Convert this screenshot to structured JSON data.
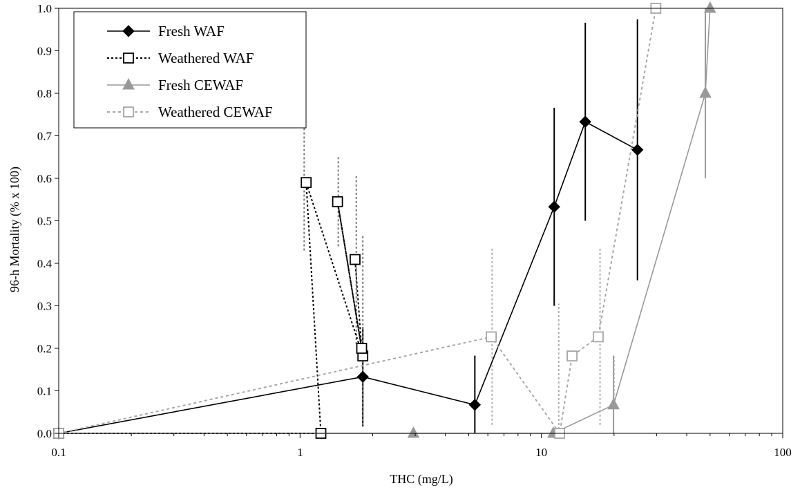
{
  "chart_data": {
    "type": "line",
    "title": "",
    "xlabel": "THC (mg/L)",
    "ylabel": "96-h Mortality (% x 100)",
    "x_scale": "log",
    "xlim": [
      0.1,
      100
    ],
    "ylim": [
      0.0,
      1.0
    ],
    "x_ticks": [
      "0.1",
      "1",
      "10",
      "100"
    ],
    "y_ticks": [
      "0.0",
      "0.1",
      "0.2",
      "0.3",
      "0.4",
      "0.5",
      "0.6",
      "0.7",
      "0.8",
      "0.9",
      "1.0"
    ],
    "grid": false,
    "legend_position": "top-left",
    "series": [
      {
        "name": "Fresh WAF",
        "color": "#000000",
        "marker": "diamond-filled",
        "line": "solid",
        "points": [
          {
            "x": 0.1,
            "y": 0.0
          },
          {
            "x": 1.82,
            "y": 0.133,
            "err_low": 0.016,
            "err_high": 0.25
          },
          {
            "x": 5.3,
            "y": 0.067,
            "err_low": -0.05,
            "err_high": 0.183
          },
          {
            "x": 11.3,
            "y": 0.533,
            "err_low": 0.3,
            "err_high": 0.766
          },
          {
            "x": 15.2,
            "y": 0.733,
            "err_low": 0.5,
            "err_high": 0.966
          },
          {
            "x": 25.0,
            "y": 0.667,
            "err_low": 0.36,
            "err_high": 0.974
          }
        ]
      },
      {
        "name": "Weathered WAF",
        "color": "#000000",
        "marker": "square-open",
        "line": "dotted",
        "points": [
          {
            "x": 0.1,
            "y": 0.0
          },
          {
            "x": 1.22,
            "y": 0.0
          },
          {
            "x": 1.06,
            "y": 0.59
          },
          {
            "x": 1.82,
            "y": 0.182
          },
          {
            "x": 1.43,
            "y": 0.545
          },
          {
            "x": 1.8,
            "y": 0.2
          },
          {
            "x": 1.69,
            "y": 0.409
          }
        ]
      },
      {
        "name": "Fresh CEWAF",
        "color": "#999999",
        "marker": "triangle-filled",
        "line": "solid",
        "points": [
          {
            "x": 0.1,
            "y": 0.0
          },
          {
            "x": 2.95,
            "y": 0.0
          },
          {
            "x": 11.2,
            "y": 0.0
          },
          {
            "x": 19.9,
            "y": 0.067,
            "err_low": -0.05,
            "err_high": 0.183
          },
          {
            "x": 47.8,
            "y": 0.8,
            "err_low": 0.6,
            "err_high": 1.0
          },
          {
            "x": 50.0,
            "y": 1.0
          }
        ]
      },
      {
        "name": "Weathered CEWAF",
        "color": "#a6a6a6",
        "marker": "square-open",
        "line": "dotted",
        "points": [
          {
            "x": 0.1,
            "y": 0.0
          },
          {
            "x": 6.2,
            "y": 0.227
          },
          {
            "x": 11.9,
            "y": 0.0
          },
          {
            "x": 13.4,
            "y": 0.182
          },
          {
            "x": 17.2,
            "y": 0.227
          },
          {
            "x": 29.8,
            "y": 1.0
          }
        ]
      }
    ],
    "extra_error_bars": [
      {
        "series": "Weathered WAF",
        "x": 1.04,
        "low": 0.43,
        "high": 0.75
      },
      {
        "series": "Weathered WAF",
        "x": 1.44,
        "low": 0.44,
        "high": 0.65
      },
      {
        "series": "Weathered WAF",
        "x": 1.71,
        "low": 0.21,
        "high": 0.61
      },
      {
        "series": "Weathered WAF",
        "x": 1.82,
        "low": 0.02,
        "high": 0.465
      },
      {
        "series": "Weathered CEWAF",
        "x": 6.25,
        "low": 0.02,
        "high": 0.435
      },
      {
        "series": "Weathered CEWAF",
        "x": 11.8,
        "low": 0.0,
        "high": 0.305
      },
      {
        "series": "Weathered CEWAF",
        "x": 17.5,
        "low": 0.02,
        "high": 0.435
      },
      {
        "series": "Weathered CEWAF",
        "x": 20.0,
        "low": 0.06,
        "high": 0.18
      }
    ]
  }
}
